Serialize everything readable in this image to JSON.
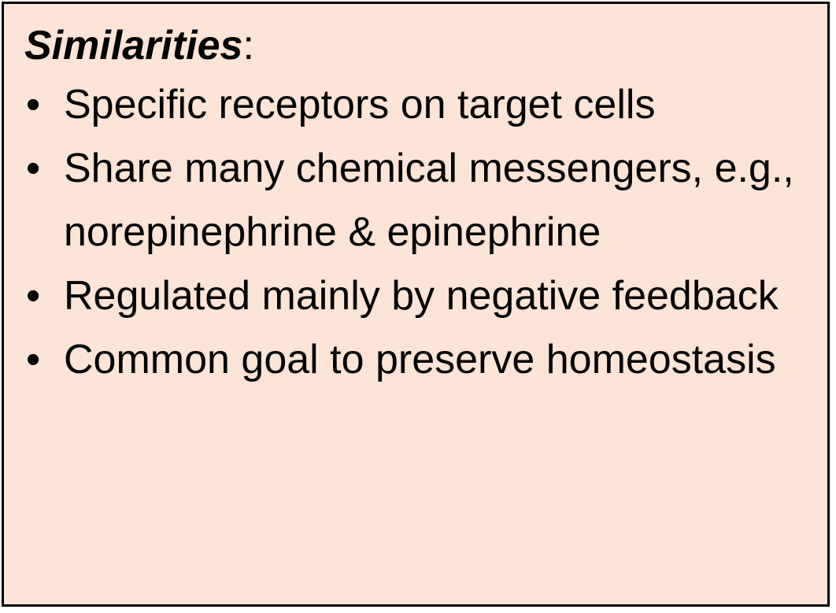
{
  "colors": {
    "box_background": "#fce4d6",
    "box_border": "#000000",
    "text": "#000000"
  },
  "heading": {
    "title": "Similarities",
    "suffix": ":"
  },
  "bullet_glyph": "•",
  "items": [
    {
      "text": "Specific receptors on target cells"
    },
    {
      "text": "Share many chemical messengers, e.g., norepinephrine & epinephrine"
    },
    {
      "text": "Regulated mainly by negative feedback"
    },
    {
      "text": "Common goal to preserve homeostasis"
    }
  ]
}
